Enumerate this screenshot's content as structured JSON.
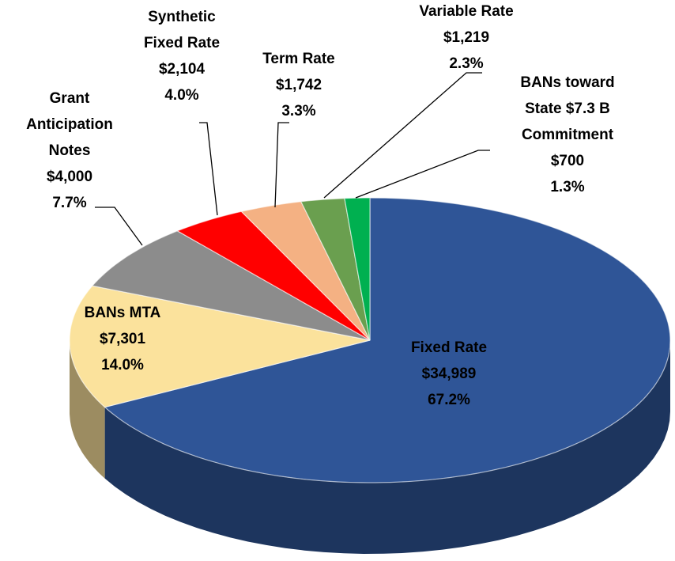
{
  "chart_data": {
    "type": "pie3d",
    "categories": [
      [
        "Fixed Rate"
      ],
      [
        "BANs MTA"
      ],
      [
        "Grant",
        "Anticipation",
        "Notes"
      ],
      [
        "Synthetic",
        "Fixed Rate"
      ],
      [
        "Term Rate"
      ],
      [
        "Variable Rate"
      ],
      [
        "BANs toward",
        "State $7.3 B",
        "Commitment"
      ]
    ],
    "values": [
      34989,
      7301,
      4000,
      2104,
      1742,
      1219,
      700
    ],
    "value_labels": [
      "$34,989",
      "$7,301",
      "$4,000",
      "$2,104",
      "$1,742",
      "$1,219",
      "$700"
    ],
    "percents": [
      67.2,
      14.0,
      7.7,
      4.0,
      3.3,
      2.3,
      1.3
    ],
    "percent_labels": [
      "67.2%",
      "14.0%",
      "7.7%",
      "4.0%",
      "3.3%",
      "2.3%",
      "1.3%"
    ],
    "colors": [
      "#2f5597",
      "#fbe29c",
      "#8c8c8c",
      "#ff0000",
      "#f4b183",
      "#6a9f4f",
      "#00b050"
    ]
  }
}
